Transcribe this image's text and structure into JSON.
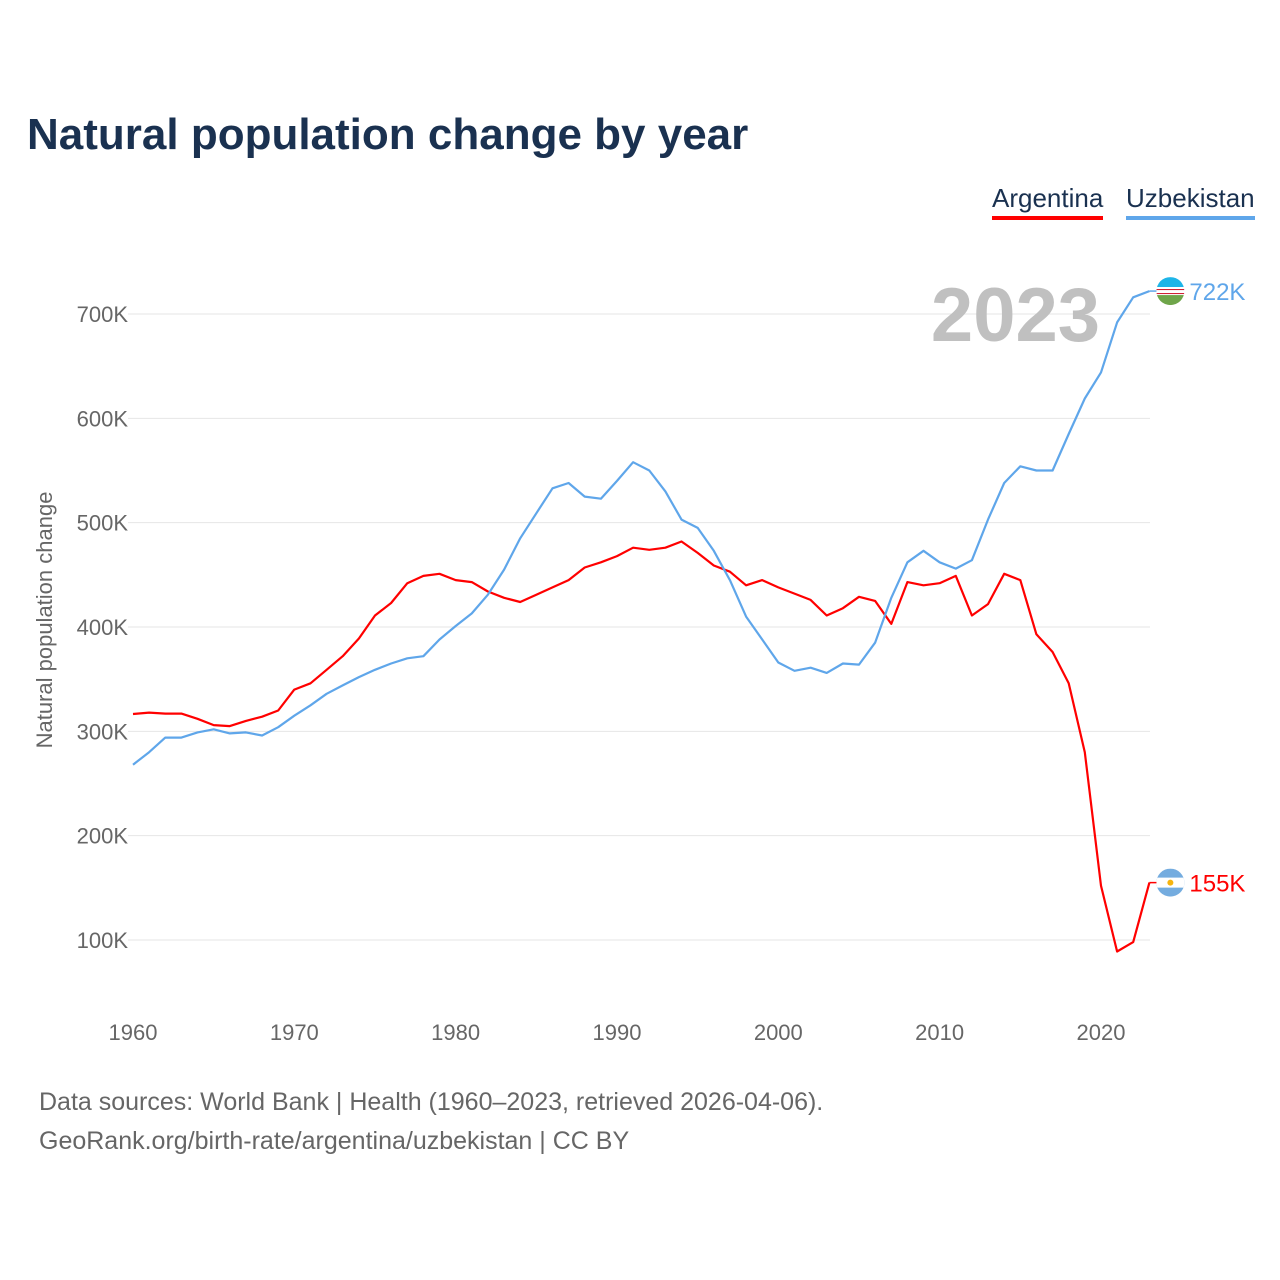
{
  "chart_data": {
    "type": "line",
    "title": "Natural population change by year",
    "xlabel": "",
    "ylabel": "Natural population change",
    "xlim": [
      1960,
      2023
    ],
    "ylim": [
      50000,
      770000
    ],
    "x_ticks": [
      "1960",
      "1970",
      "1980",
      "1990",
      "2000",
      "2010",
      "2020"
    ],
    "y_ticks": [
      {
        "v": 100000,
        "label": "100K"
      },
      {
        "v": 200000,
        "label": "200K"
      },
      {
        "v": 300000,
        "label": "300K"
      },
      {
        "v": 400000,
        "label": "400K"
      },
      {
        "v": 500000,
        "label": "500K"
      },
      {
        "v": 600000,
        "label": "600K"
      },
      {
        "v": 700000,
        "label": "700K"
      }
    ],
    "grid": true,
    "legend_placement": "top-right",
    "year_label": "2023",
    "x_start": 1960,
    "series": [
      {
        "name": "Argentina",
        "color": "#ff0000",
        "end_label": "155K",
        "flag": "argentina-flag",
        "values": [
          316600,
          318000,
          317000,
          317000,
          312000,
          306000,
          305000,
          310000,
          314000,
          320000,
          340000,
          346000,
          359000,
          372000,
          389000,
          411000,
          423000,
          442000,
          449000,
          451000,
          445000,
          443000,
          434000,
          428000,
          424000,
          431000,
          438000,
          445000,
          457000,
          462000,
          468000,
          476000,
          474000,
          476000,
          482000,
          471000,
          459000,
          453000,
          440000,
          445000,
          438000,
          432000,
          426000,
          411000,
          418000,
          429000,
          425000,
          403000,
          443000,
          440000,
          442000,
          449000,
          411000,
          422000,
          451000,
          445000,
          393000,
          376000,
          346000,
          280000,
          152000,
          89000,
          98000,
          155000
        ]
      },
      {
        "name": "Uzbekistan",
        "color": "#5fa6ea",
        "end_label": "722K",
        "flag": "uzbekistan-flag",
        "values": [
          268000,
          280000,
          294000,
          294000,
          299000,
          302000,
          298000,
          299000,
          296000,
          304000,
          315000,
          325000,
          336000,
          344000,
          352000,
          359000,
          365000,
          370000,
          372000,
          388000,
          401000,
          413000,
          431000,
          455000,
          485000,
          509000,
          533000,
          538000,
          525000,
          523000,
          540000,
          558000,
          550000,
          530000,
          503000,
          495000,
          473000,
          445000,
          410000,
          388000,
          366000,
          358000,
          361000,
          356000,
          365000,
          364000,
          385000,
          428000,
          462000,
          473000,
          462000,
          456000,
          464000,
          503000,
          538000,
          554000,
          550000,
          550000,
          585000,
          619000,
          644000,
          692000,
          716000,
          722000
        ]
      }
    ]
  },
  "footer": {
    "sources": "Data sources: World Bank | Health (1960–2023, retrieved 2026-04-06).",
    "credit": "GeoRank.org/birth-rate/argentina/uzbekistan | CC BY"
  }
}
